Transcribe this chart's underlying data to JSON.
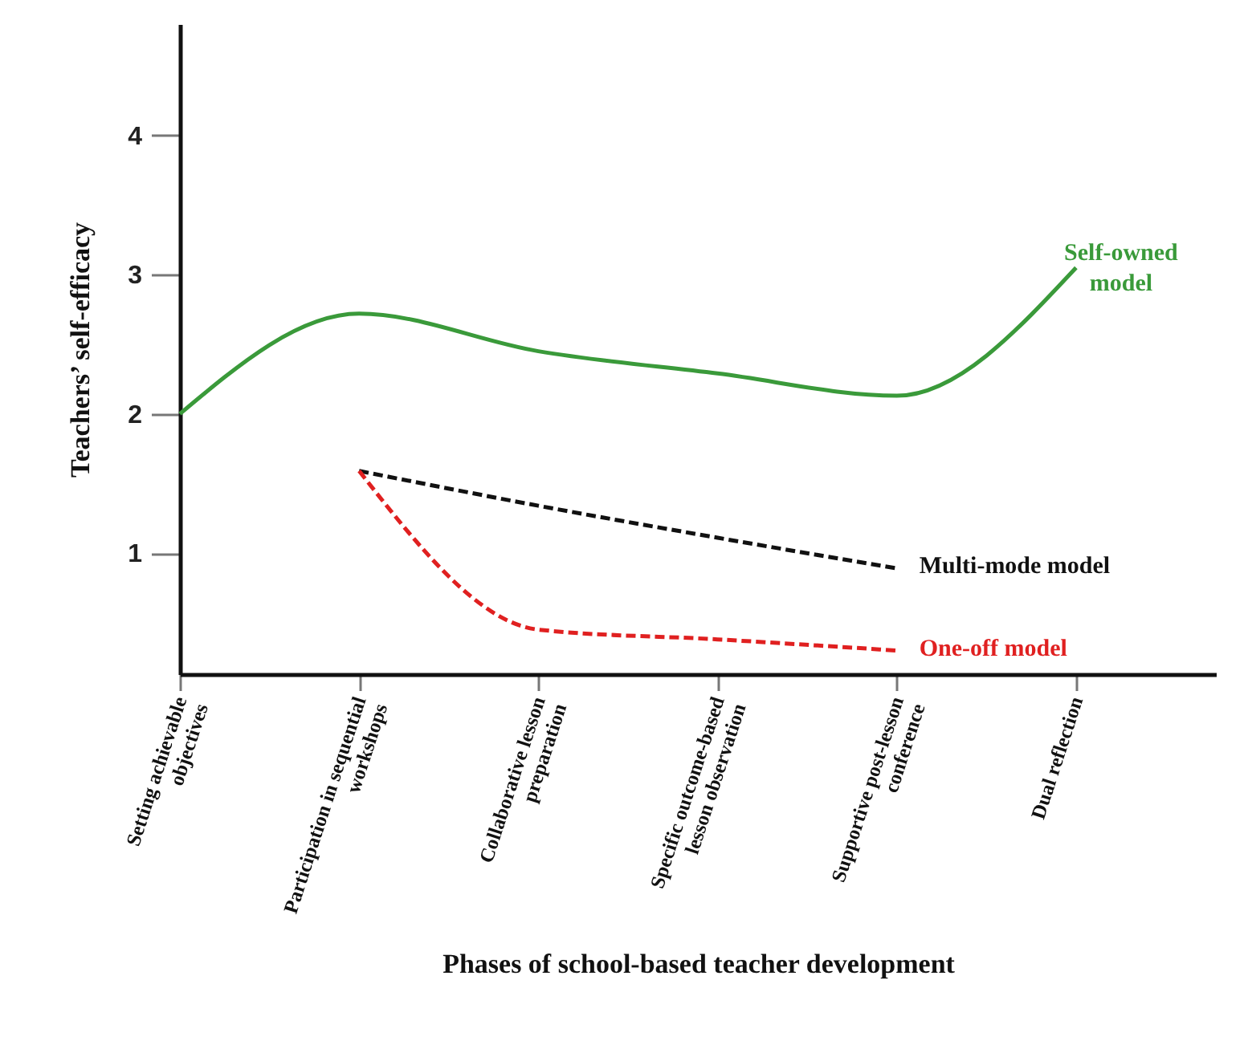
{
  "chart_data": {
    "type": "line",
    "xlabel": "Phases of school-based teacher development",
    "ylabel": "Teachers’ self-efficacy",
    "categories": [
      "Setting achievable objectives",
      "Participation in sequential workshops",
      "Collaborative lesson preparation",
      "Specific outcome-based lesson observation",
      "Supportive post-lesson conference",
      "Dual reflection"
    ],
    "ylim": [
      0.13,
      4.8
    ],
    "yticks": [
      1,
      2,
      3,
      4
    ],
    "series": [
      {
        "name": "Self-owned model",
        "color": "#3a9a3a",
        "line_style": "solid",
        "values": [
          2.0,
          2.72,
          2.45,
          2.29,
          2.13,
          3.05
        ]
      },
      {
        "name": "Multi-mode model",
        "color": "#111111",
        "line_style": "dashed",
        "values": [
          null,
          1.59,
          1.34,
          1.11,
          0.89,
          null
        ]
      },
      {
        "name": "One-off model",
        "color": "#e02020",
        "line_style": "dashed",
        "values": [
          null,
          1.59,
          0.45,
          0.38,
          0.3,
          null
        ]
      }
    ]
  }
}
